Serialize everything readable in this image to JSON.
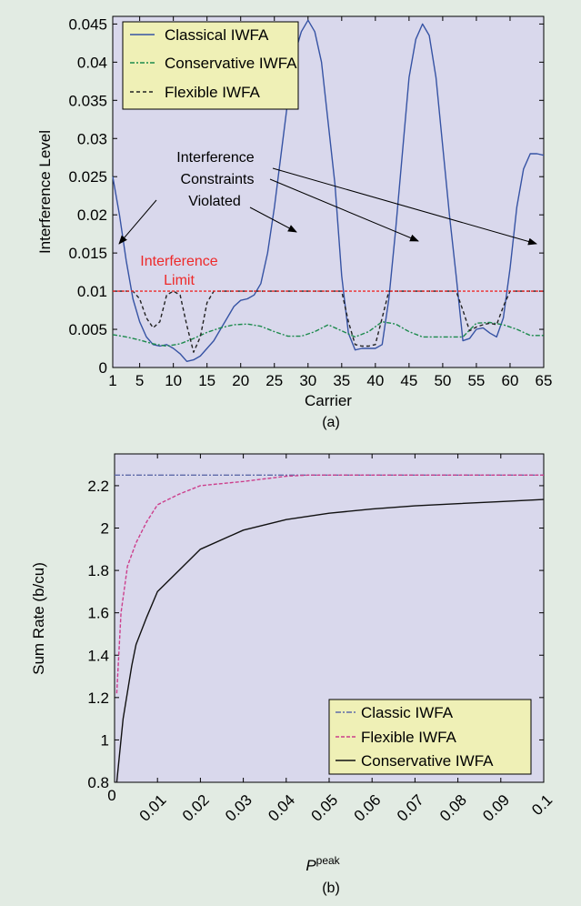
{
  "colors": {
    "background": "#e2ebe3",
    "plot_bg": "#d9d8ec",
    "legend_bg": "#eff0b6",
    "classical": "#3653a4",
    "conservative": "#1c8a4c",
    "flexible": "#222222",
    "limit": "#ee2a2a",
    "flexible_b": "#cc3f8c",
    "classic_b": "#5f6aa8",
    "conservative_b": "#111111"
  },
  "chart_data": [
    {
      "type": "line",
      "panel_label": "(a)",
      "xlabel": "Carrier",
      "ylabel": "Interference Level",
      "xlim": [
        1,
        65
      ],
      "ylim": [
        0,
        0.046
      ],
      "xticks": [
        1,
        5,
        10,
        15,
        20,
        25,
        30,
        35,
        40,
        45,
        50,
        55,
        60,
        65
      ],
      "xtick_labels": [
        "1",
        "5",
        "10",
        "15",
        "20",
        "25",
        "30",
        "35",
        "40",
        "45",
        "50",
        "55",
        "60",
        "65"
      ],
      "yticks": [
        0,
        0.005,
        0.01,
        0.015,
        0.02,
        0.025,
        0.03,
        0.035,
        0.04,
        0.045
      ],
      "ytick_labels": [
        "0",
        "0.005",
        "0.01",
        "0.015",
        "0.02",
        "0.025",
        "0.03",
        "0.035",
        "0.04",
        "0.045"
      ],
      "legend_position": "top-left",
      "legend": [
        "Classical IWFA",
        "Conservative IWFA",
        "Flexible IWFA"
      ],
      "series": [
        {
          "name": "Classical IWFA",
          "color_key": "classical",
          "dash": "",
          "x": [
            1,
            2,
            3,
            4,
            5,
            6,
            7,
            8,
            9,
            10,
            11,
            12,
            13,
            14,
            15,
            16,
            17,
            18,
            19,
            20,
            21,
            22,
            23,
            24,
            25,
            26,
            27,
            28,
            29,
            30,
            31,
            32,
            33,
            34,
            35,
            36,
            37,
            38,
            39,
            40,
            41,
            42,
            43,
            44,
            45,
            46,
            47,
            48,
            49,
            50,
            51,
            52,
            53,
            54,
            55,
            56,
            57,
            58,
            59,
            60,
            61,
            62,
            63,
            64,
            65
          ],
          "y": [
            0.025,
            0.02,
            0.014,
            0.009,
            0.006,
            0.004,
            0.003,
            0.0028,
            0.003,
            0.0025,
            0.0018,
            0.0008,
            0.001,
            0.0015,
            0.0025,
            0.0035,
            0.005,
            0.0065,
            0.008,
            0.0088,
            0.009,
            0.0095,
            0.011,
            0.015,
            0.021,
            0.028,
            0.035,
            0.041,
            0.044,
            0.0455,
            0.044,
            0.04,
            0.032,
            0.024,
            0.012,
            0.0045,
            0.0023,
            0.0025,
            0.0025,
            0.0025,
            0.003,
            0.009,
            0.018,
            0.028,
            0.038,
            0.043,
            0.045,
            0.0435,
            0.038,
            0.029,
            0.02,
            0.012,
            0.0035,
            0.0038,
            0.005,
            0.0052,
            0.0045,
            0.004,
            0.0065,
            0.013,
            0.021,
            0.026,
            0.028,
            0.028,
            0.0278
          ]
        },
        {
          "name": "Conservative IWFA",
          "color_key": "conservative",
          "dash": "5 2 2 2",
          "x": [
            1,
            3,
            5,
            7,
            9,
            11,
            13,
            15,
            17,
            19,
            21,
            23,
            25,
            27,
            29,
            31,
            33,
            35,
            37,
            39,
            41,
            43,
            45,
            47,
            49,
            51,
            53,
            55,
            57,
            59,
            61,
            63,
            65
          ],
          "y": [
            0.0043,
            0.004,
            0.0036,
            0.0031,
            0.0028,
            0.0031,
            0.0038,
            0.0046,
            0.0052,
            0.0056,
            0.0057,
            0.0054,
            0.0047,
            0.0041,
            0.0041,
            0.0047,
            0.0056,
            0.0048,
            0.004,
            0.0047,
            0.006,
            0.0057,
            0.0047,
            0.004,
            0.004,
            0.004,
            0.004,
            0.0058,
            0.0059,
            0.0056,
            0.005,
            0.0042,
            0.0042
          ]
        },
        {
          "name": "Flexible IWFA",
          "color_key": "flexible",
          "dash": "4 3",
          "x": [
            1,
            2,
            3,
            4,
            5,
            6,
            7,
            8,
            9,
            10,
            11,
            12,
            13,
            14,
            15,
            16,
            20,
            25,
            30,
            34,
            35,
            36,
            37,
            38,
            39,
            40,
            41,
            42,
            45,
            50,
            52,
            53,
            54,
            55,
            56,
            57,
            58,
            59,
            60,
            65
          ],
          "y": [
            0.01,
            0.01,
            0.01,
            0.01,
            0.009,
            0.0065,
            0.0052,
            0.006,
            0.0095,
            0.01,
            0.0095,
            0.0055,
            0.002,
            0.004,
            0.0085,
            0.01,
            0.01,
            0.01,
            0.01,
            0.01,
            0.01,
            0.006,
            0.003,
            0.0028,
            0.0028,
            0.003,
            0.0065,
            0.01,
            0.01,
            0.01,
            0.01,
            0.0075,
            0.0048,
            0.0053,
            0.0056,
            0.0058,
            0.0056,
            0.008,
            0.01,
            0.01
          ]
        },
        {
          "name": "Interference Limit",
          "color_key": "limit",
          "dash": "3 2",
          "x": [
            1,
            65
          ],
          "y": [
            0.01,
            0.01
          ]
        }
      ],
      "annotations": {
        "limit_label_line1": "Interference",
        "limit_label_line2": "Limit",
        "violated_line1": "Interference",
        "violated_line2": "Constraints",
        "violated_line3": "Violated"
      }
    },
    {
      "type": "line",
      "panel_label": "(b)",
      "xlabel_main": "P",
      "xlabel_sup": "peak",
      "ylabel": "Sum Rate (b/cu)",
      "xlim": [
        0,
        0.1
      ],
      "ylim": [
        0.8,
        2.35
      ],
      "xticks": [
        0,
        0.01,
        0.02,
        0.03,
        0.04,
        0.05,
        0.06,
        0.07,
        0.08,
        0.09,
        0.1
      ],
      "xtick_labels": [
        "0",
        "0.01",
        "0.02",
        "0.03",
        "0.04",
        "0.05",
        "0.06",
        "0.07",
        "0.08",
        "0.09",
        "0.1"
      ],
      "yticks": [
        0.8,
        1,
        1.2,
        1.4,
        1.6,
        1.8,
        2,
        2.2
      ],
      "ytick_labels": [
        "0.8",
        "1",
        "1.2",
        "1.4",
        "1.6",
        "1.8",
        "2",
        "2.2"
      ],
      "legend_position": "bottom-right",
      "legend": [
        "Classic IWFA",
        "Flexible IWFA",
        "Conservative IWFA"
      ],
      "series": [
        {
          "name": "Classic IWFA",
          "color_key": "classic_b",
          "dash": "6 2 2 2",
          "x": [
            0,
            0.1
          ],
          "y": [
            2.25,
            2.25
          ]
        },
        {
          "name": "Flexible IWFA",
          "color_key": "flexible_b",
          "dash": "4 2",
          "x": [
            0.0005,
            0.0015,
            0.003,
            0.005,
            0.0075,
            0.01,
            0.015,
            0.02,
            0.03,
            0.04,
            0.045,
            0.05,
            0.06,
            0.08,
            0.1
          ],
          "y": [
            1.22,
            1.6,
            1.82,
            1.93,
            2.03,
            2.11,
            2.16,
            2.2,
            2.22,
            2.245,
            2.25,
            2.25,
            2.25,
            2.25,
            2.25
          ]
        },
        {
          "name": "Conservative IWFA",
          "color_key": "conservative_b",
          "dash": "",
          "x": [
            0.0005,
            0.002,
            0.004,
            0.005,
            0.0075,
            0.01,
            0.015,
            0.02,
            0.03,
            0.04,
            0.05,
            0.06,
            0.07,
            0.08,
            0.09,
            0.1
          ],
          "y": [
            0.8,
            1.1,
            1.35,
            1.45,
            1.58,
            1.7,
            1.8,
            1.9,
            1.99,
            2.04,
            2.07,
            2.09,
            2.105,
            2.115,
            2.125,
            2.135
          ]
        }
      ]
    }
  ]
}
